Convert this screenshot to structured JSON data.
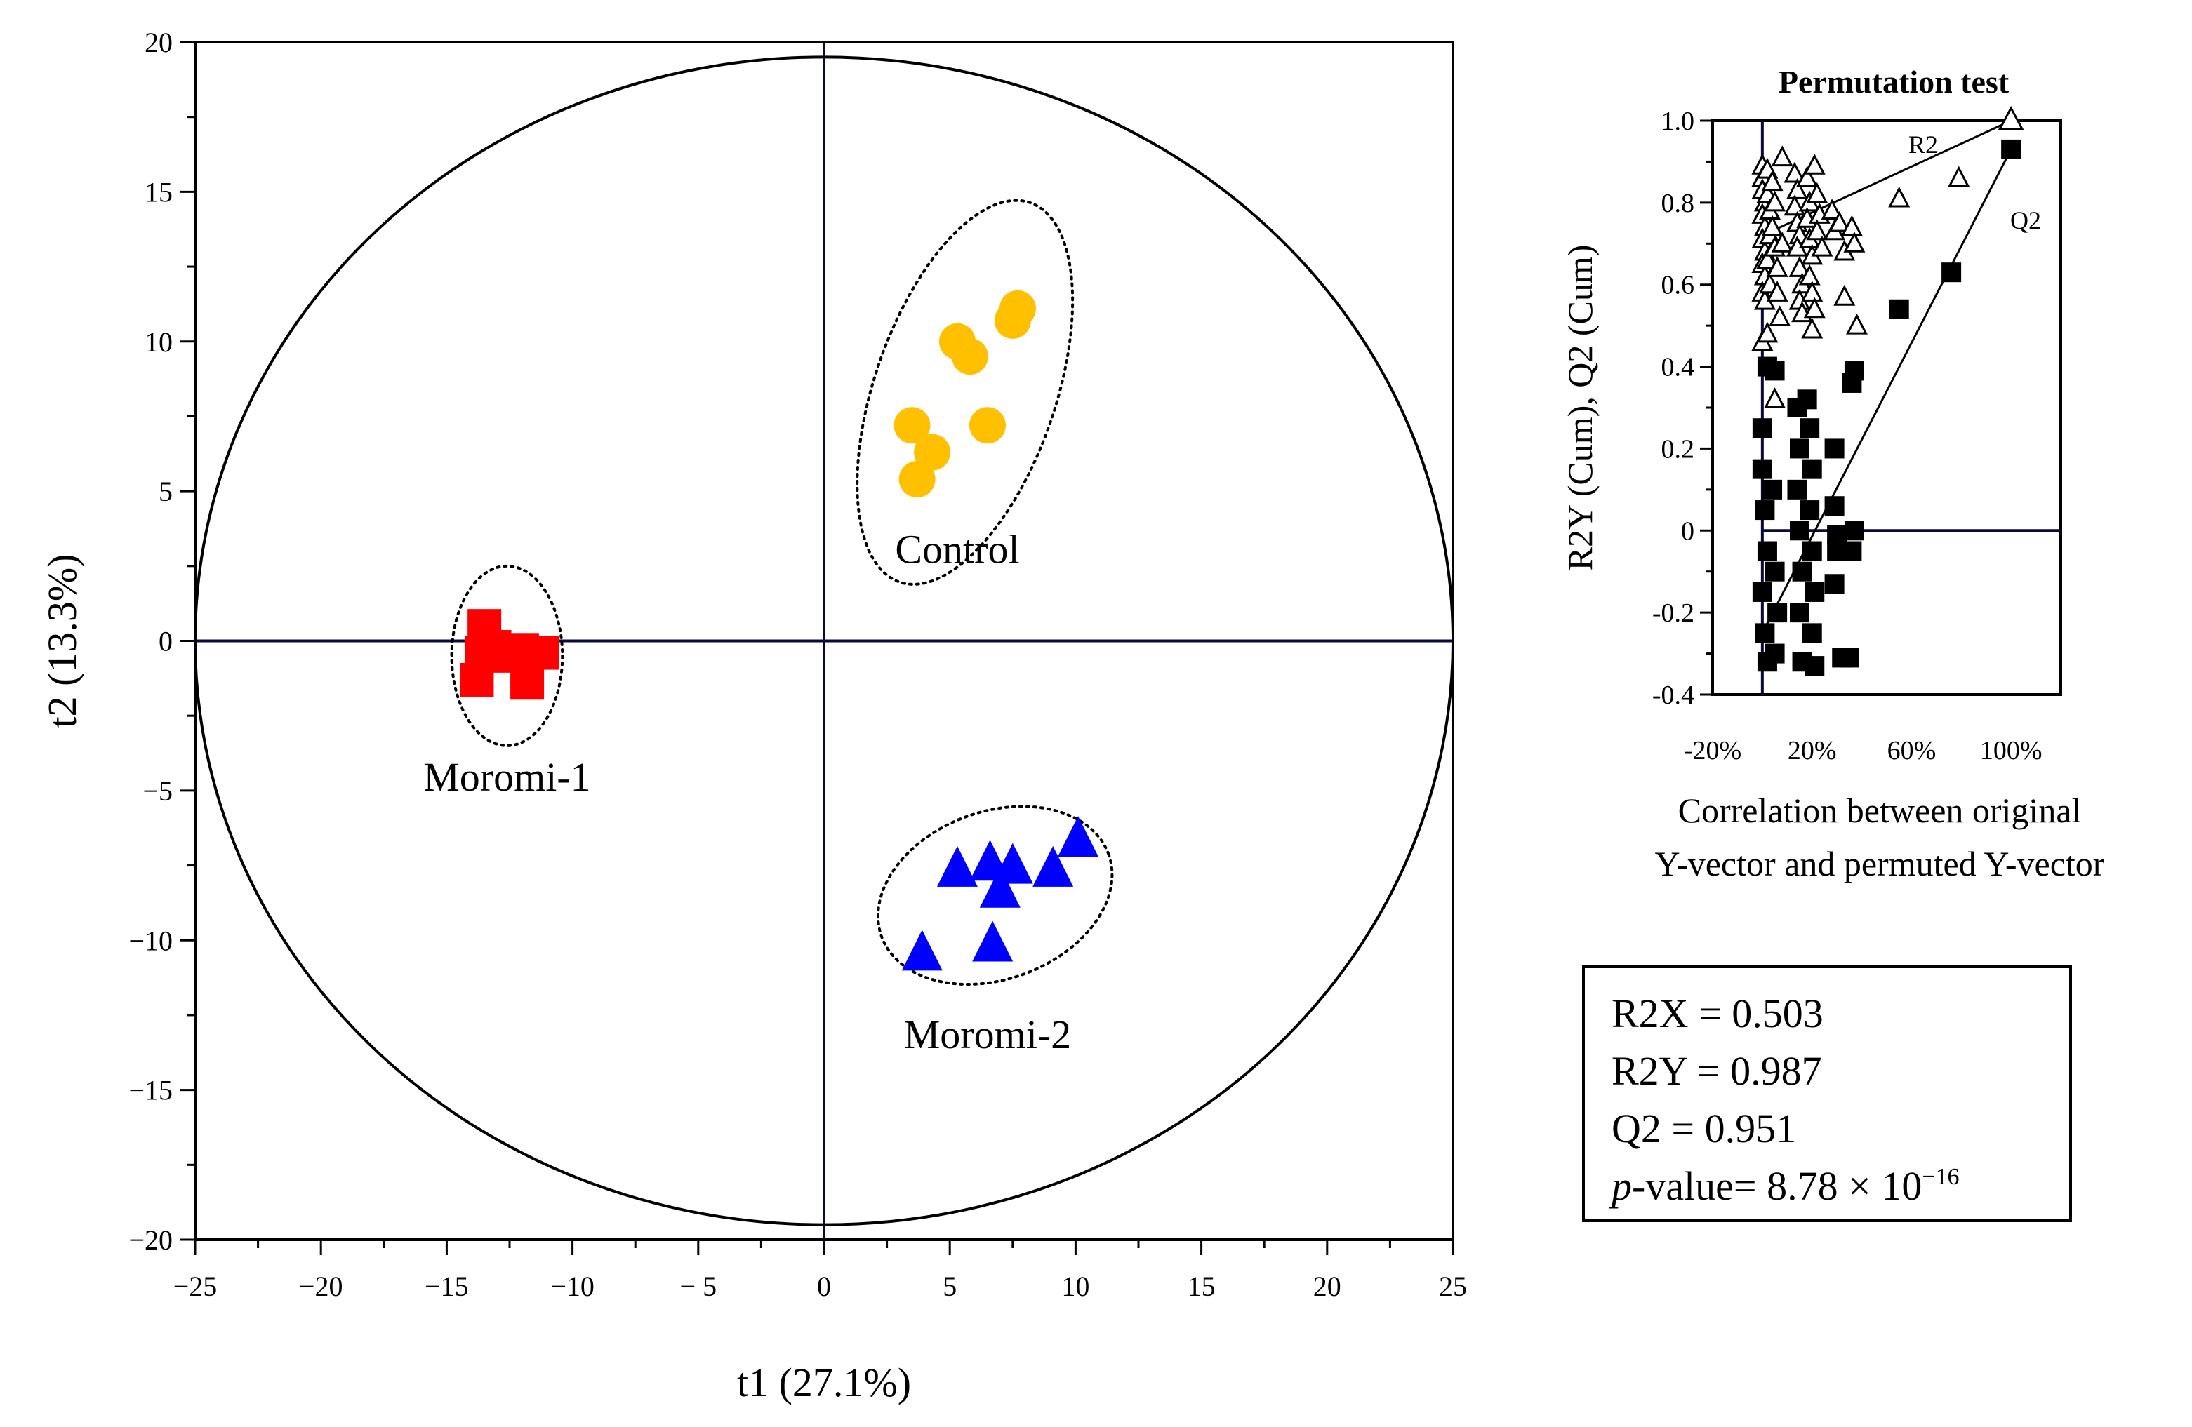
{
  "chart_data": [
    {
      "type": "scatter",
      "title": "",
      "xlabel": "t1 (27.1%)",
      "ylabel": "t2 (13.3%)",
      "xlim": [
        -25,
        25
      ],
      "ylim": [
        -20,
        20
      ],
      "xticks": [
        -25,
        -20,
        -15,
        -10,
        -5,
        0,
        5,
        10,
        15,
        20,
        25
      ],
      "yticks": [
        -20,
        -15,
        -10,
        -5,
        0,
        5,
        10,
        15,
        20
      ],
      "xtick_labels": [
        "−25",
        "−20",
        "−15",
        "−10",
        "− 5",
        "0",
        "5",
        "10",
        "15",
        "20",
        "25"
      ],
      "ytick_labels": [
        "−20",
        "−15",
        "−10",
        "−5",
        "0",
        "5",
        "10",
        "15",
        "20"
      ],
      "series": [
        {
          "name": "Control",
          "marker": "circle",
          "color": "#FFC000",
          "points": [
            [
              3.5,
              7.2
            ],
            [
              3.7,
              5.4
            ],
            [
              4.3,
              6.3
            ],
            [
              5.3,
              10.0
            ],
            [
              5.8,
              9.5
            ],
            [
              6.5,
              7.2
            ],
            [
              7.5,
              10.7
            ],
            [
              7.7,
              11.1
            ]
          ]
        },
        {
          "name": "Moromi-1",
          "marker": "square",
          "color": "#FF0000",
          "points": [
            [
              -13.5,
              0.5
            ],
            [
              -13.6,
              -0.4
            ],
            [
              -13.1,
              -0.2
            ],
            [
              -13.8,
              -1.3
            ],
            [
              -12.6,
              -0.5
            ],
            [
              -12.0,
              -0.3
            ],
            [
              -11.8,
              -1.4
            ],
            [
              -11.2,
              -0.4
            ]
          ]
        },
        {
          "name": "Moromi-2",
          "marker": "triangle",
          "color": "#0000FF",
          "points": [
            [
              3.9,
              -10.4
            ],
            [
              5.3,
              -7.6
            ],
            [
              6.6,
              -7.4
            ],
            [
              7.0,
              -8.3
            ],
            [
              7.5,
              -7.5
            ],
            [
              6.7,
              -10.1
            ],
            [
              9.1,
              -7.6
            ],
            [
              10.1,
              -6.6
            ]
          ]
        }
      ],
      "ellipses": [
        {
          "name": "Control",
          "cx": 5.6,
          "cy": 8.3,
          "rx": 3.6,
          "ry": 6.7,
          "angle_deg": 19
        },
        {
          "name": "Moromi-1",
          "cx": -12.6,
          "cy": -0.5,
          "rx": 2.2,
          "ry": 3.0,
          "angle_deg": 0
        },
        {
          "name": "Moromi-2",
          "cx": 6.8,
          "cy": -8.5,
          "rx": 4.8,
          "ry": 2.8,
          "angle_deg": -20
        }
      ],
      "hotelling_ellipse": {
        "rx": 25,
        "ry": 19.5
      },
      "group_labels": [
        "Control",
        "Moromi-1",
        "Moromi-2"
      ]
    },
    {
      "type": "scatter",
      "title": "Permutation test",
      "xlabel": "Correlation between original Y-vector and permuted Y-vector",
      "ylabel": "R2Y (Cum), Q2 (Cum)",
      "xlim": [
        -0.2,
        1.2
      ],
      "ylim": [
        -0.4,
        1.0
      ],
      "xticks": [
        -0.2,
        0.2,
        0.6,
        1.0
      ],
      "xtick_labels": [
        "-20%",
        "20%",
        "60%",
        "100%"
      ],
      "yticks": [
        -0.4,
        -0.2,
        0,
        0.2,
        0.4,
        0.6,
        0.8,
        1.0
      ],
      "ytick_labels": [
        "-0.4",
        "-0.2",
        "0",
        "0.2",
        "0.4",
        "0.6",
        "0.8",
        "1.0"
      ],
      "series": [
        {
          "name": "R2",
          "marker": "open-triangle",
          "points": [
            [
              0.0,
              0.89
            ],
            [
              0.0,
              0.86
            ],
            [
              0.0,
              0.83
            ],
            [
              0.01,
              0.8
            ],
            [
              0.0,
              0.77
            ],
            [
              0.01,
              0.74
            ],
            [
              0.0,
              0.71
            ],
            [
              0.01,
              0.68
            ],
            [
              0.0,
              0.65
            ],
            [
              0.01,
              0.62
            ],
            [
              0.0,
              0.58
            ],
            [
              0.01,
              0.56
            ],
            [
              0.02,
              0.88
            ],
            [
              0.02,
              0.82
            ],
            [
              0.03,
              0.78
            ],
            [
              0.03,
              0.72
            ],
            [
              0.02,
              0.66
            ],
            [
              0.03,
              0.6
            ],
            [
              0.04,
              0.85
            ],
            [
              0.05,
              0.8
            ],
            [
              0.04,
              0.74
            ],
            [
              0.05,
              0.69
            ],
            [
              0.06,
              0.64
            ],
            [
              0.06,
              0.58
            ],
            [
              0.08,
              0.91
            ],
            [
              0.08,
              0.7
            ],
            [
              0.07,
              0.52
            ],
            [
              0.0,
              0.46
            ],
            [
              0.02,
              0.48
            ],
            [
              0.05,
              0.32
            ],
            [
              0.13,
              0.87
            ],
            [
              0.14,
              0.83
            ],
            [
              0.13,
              0.79
            ],
            [
              0.14,
              0.75
            ],
            [
              0.15,
              0.72
            ],
            [
              0.14,
              0.69
            ],
            [
              0.15,
              0.64
            ],
            [
              0.16,
              0.6
            ],
            [
              0.15,
              0.56
            ],
            [
              0.16,
              0.53
            ],
            [
              0.18,
              0.86
            ],
            [
              0.19,
              0.8
            ],
            [
              0.18,
              0.76
            ],
            [
              0.19,
              0.71
            ],
            [
              0.2,
              0.67
            ],
            [
              0.19,
              0.62
            ],
            [
              0.2,
              0.58
            ],
            [
              0.21,
              0.54
            ],
            [
              0.2,
              0.49
            ],
            [
              0.21,
              0.89
            ],
            [
              0.22,
              0.82
            ],
            [
              0.23,
              0.77
            ],
            [
              0.22,
              0.73
            ],
            [
              0.24,
              0.69
            ],
            [
              0.28,
              0.78
            ],
            [
              0.29,
              0.73
            ],
            [
              0.31,
              0.75
            ],
            [
              0.33,
              0.68
            ],
            [
              0.33,
              0.57
            ],
            [
              0.36,
              0.74
            ],
            [
              0.37,
              0.7
            ],
            [
              0.38,
              0.5
            ],
            [
              0.55,
              0.81
            ],
            [
              0.79,
              0.86
            ]
          ]
        },
        {
          "name": "Q2",
          "marker": "filled-square",
          "points": [
            [
              0.0,
              0.25
            ],
            [
              0.02,
              0.4
            ],
            [
              0.05,
              0.39
            ],
            [
              0.0,
              0.15
            ],
            [
              0.01,
              0.05
            ],
            [
              0.02,
              -0.05
            ],
            [
              0.0,
              -0.15
            ],
            [
              0.01,
              -0.25
            ],
            [
              0.02,
              -0.32
            ],
            [
              0.04,
              0.1
            ],
            [
              0.05,
              -0.1
            ],
            [
              0.06,
              -0.2
            ],
            [
              0.05,
              -0.3
            ],
            [
              0.14,
              0.3
            ],
            [
              0.15,
              0.2
            ],
            [
              0.14,
              0.1
            ],
            [
              0.15,
              0.0
            ],
            [
              0.16,
              -0.1
            ],
            [
              0.15,
              -0.2
            ],
            [
              0.16,
              -0.32
            ],
            [
              0.18,
              0.32
            ],
            [
              0.19,
              0.25
            ],
            [
              0.2,
              0.15
            ],
            [
              0.19,
              0.05
            ],
            [
              0.2,
              -0.05
            ],
            [
              0.21,
              -0.15
            ],
            [
              0.2,
              -0.25
            ],
            [
              0.21,
              -0.33
            ],
            [
              0.29,
              0.2
            ],
            [
              0.29,
              0.06
            ],
            [
              0.3,
              -0.01
            ],
            [
              0.3,
              -0.05
            ],
            [
              0.29,
              -0.13
            ],
            [
              0.32,
              -0.31
            ],
            [
              0.35,
              -0.31
            ],
            [
              0.36,
              0.36
            ],
            [
              0.37,
              0.39
            ],
            [
              0.37,
              0.0
            ],
            [
              0.36,
              -0.05
            ],
            [
              0.55,
              0.54
            ],
            [
              0.76,
              0.63
            ],
            [
              1.0,
              0.93
            ]
          ]
        }
      ],
      "regression_lines": [
        {
          "name": "R2",
          "from": [
            0.0,
            0.72
          ],
          "to": [
            1.0,
            1.0
          ]
        },
        {
          "name": "Q2",
          "from": [
            0.0,
            -0.25
          ],
          "to": [
            1.0,
            0.93
          ]
        }
      ],
      "line_labels": [
        "R2",
        "Q2"
      ]
    }
  ],
  "stats": {
    "r2x": "R2X = 0.503",
    "r2y": "R2Y = 0.987",
    "q2": "Q2 = 0.951",
    "p_prefix": "p",
    "p_label": "-value= 8.78 × 10",
    "p_exponent": "−16"
  }
}
